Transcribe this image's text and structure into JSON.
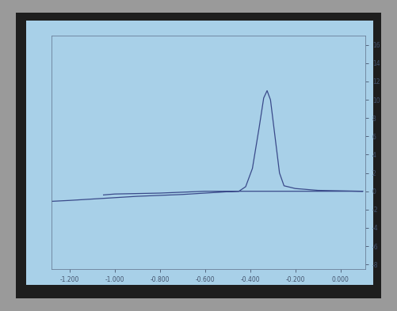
{
  "chart_data": {
    "type": "line",
    "x": [
      -1.28,
      -1.2,
      -1.1,
      -1.0,
      -0.9,
      -0.8,
      -0.7,
      -0.6,
      -0.5,
      -0.45,
      -0.42,
      -0.39,
      -0.36,
      -0.34,
      -0.325,
      -0.31,
      -0.29,
      -0.27,
      -0.25,
      -0.2,
      -0.1,
      0.0,
      0.1,
      0.0,
      -0.2,
      -0.4,
      -0.6,
      -0.7,
      -0.8,
      -0.9,
      -1.0,
      -1.05
    ],
    "values": [
      -1.1,
      -1.0,
      -0.85,
      -0.7,
      -0.55,
      -0.45,
      -0.35,
      -0.2,
      -0.05,
      0.0,
      0.5,
      2.5,
      7.0,
      10.2,
      11.0,
      10.0,
      6.0,
      2.0,
      0.6,
      0.3,
      0.1,
      0.05,
      0.0,
      0.0,
      0.0,
      0.0,
      0.0,
      -0.1,
      -0.2,
      -0.25,
      -0.3,
      -0.4
    ],
    "color": "#3a4a8a",
    "xlim": [
      -1.28,
      0.11
    ],
    "xticks": [
      {
        "value": -1.2,
        "label": "-1.200"
      },
      {
        "value": -1.0,
        "label": "-1.000"
      },
      {
        "value": -0.8,
        "label": "-0.800"
      },
      {
        "value": -0.6,
        "label": "-0.600"
      },
      {
        "value": -0.4,
        "label": "-0.400"
      },
      {
        "value": -0.2,
        "label": "-0.200"
      },
      {
        "value": 0.0,
        "label": "0.000"
      }
    ],
    "ylim": [
      -8.5,
      17
    ],
    "yticks": [
      -8,
      -6,
      -4,
      -2,
      0,
      2,
      4,
      6,
      8,
      10,
      12,
      14,
      16
    ],
    "grid": false
  }
}
